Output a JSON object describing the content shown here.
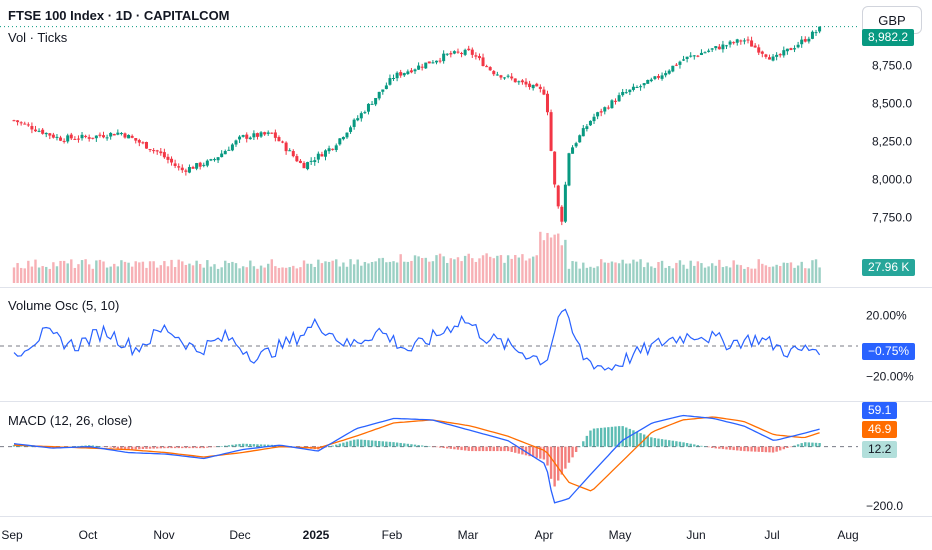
{
  "header": {
    "title": "FTSE 100 Index · 1D · CAPITALCOM",
    "subtitle": "Vol · Ticks",
    "currency_button": "GBP"
  },
  "colors": {
    "up": "#089981",
    "down": "#f23645",
    "volume_up": "#9bd0c4",
    "volume_down": "#f7b0b5",
    "osc_line": "#2962ff",
    "macd_line": "#2962ff",
    "signal_line": "#ff6d00",
    "price_line": "#089981"
  },
  "volume_osc": {
    "label": "Volume Osc (5, 10)",
    "current_label": "−0.75%",
    "axis_labels": [
      "20.00%",
      "−20.00%"
    ]
  },
  "macd": {
    "label": "MACD (12, 26, close)",
    "macd_value_label": "59.1",
    "signal_value_label": "46.9",
    "hist_value_label": "12.2",
    "axis_labels": [
      "−200.0"
    ]
  },
  "volume_badge": "27.96 K",
  "price_badge": "8,982.2",
  "chart_data": {
    "type": "candlestick",
    "title": "FTSE 100 Index · 1D · CAPITALCOM",
    "x_axis_labels": [
      "Sep",
      "Oct",
      "Nov",
      "Dec",
      "2025",
      "Feb",
      "Mar",
      "Apr",
      "May",
      "Jun",
      "Jul",
      "Aug"
    ],
    "y_axis_labels": [
      "8,750.0",
      "8,500.0",
      "8,250.0",
      "8,000.0",
      "7,750.0"
    ],
    "y_ticks": [
      8750,
      8500,
      8250,
      8000,
      7750
    ],
    "ylim": [
      7550,
      9050
    ],
    "price_anchor_points": {
      "x_month_index": [
        0,
        0.6,
        1.0,
        1.4,
        1.9,
        2.2,
        2.6,
        3.0,
        3.4,
        3.8,
        4.2,
        4.6,
        5.0,
        5.4,
        5.7,
        6.0,
        6.3,
        6.6,
        7.0,
        7.1,
        7.2,
        7.3,
        7.6,
        8.0,
        8.4,
        8.8,
        9.2,
        9.6,
        10.0,
        10.4,
        10.6
      ],
      "close": [
        8390,
        8270,
        8280,
        8310,
        8180,
        8060,
        8120,
        8280,
        8300,
        8090,
        8220,
        8450,
        8680,
        8760,
        8820,
        8840,
        8710,
        8650,
        8570,
        8000,
        7700,
        8180,
        8400,
        8560,
        8650,
        8790,
        8860,
        8920,
        8790,
        8920,
        8990
      ]
    },
    "volume_osc": {
      "ylim": [
        -30,
        30
      ],
      "ticks": [
        20,
        -20
      ],
      "anchor_points": {
        "x_month_index": [
          0,
          0.4,
          0.8,
          1.2,
          1.6,
          2.0,
          2.4,
          2.8,
          3.2,
          3.6,
          4.0,
          4.4,
          4.8,
          5.2,
          5.6,
          5.9,
          6.2,
          6.6,
          7.0,
          7.2,
          7.5,
          7.8,
          8.2,
          8.6,
          9.0,
          9.4,
          9.8,
          10.2,
          10.6
        ],
        "values": [
          -5,
          8,
          0,
          10,
          -2,
          12,
          -3,
          6,
          -8,
          2,
          15,
          0,
          10,
          -3,
          8,
          18,
          6,
          -2,
          -10,
          25,
          -8,
          -15,
          -5,
          4,
          8,
          2,
          5,
          -4,
          -1
        ]
      }
    },
    "macd": {
      "ylim": [
        -220,
        130
      ],
      "ticks": [
        -200
      ],
      "macd_anchor": {
        "x_month_index": [
          0,
          0.5,
          1.0,
          1.5,
          2.0,
          2.5,
          3.0,
          3.5,
          4.0,
          4.5,
          5.0,
          5.5,
          6.0,
          6.5,
          7.0,
          7.1,
          7.3,
          7.6,
          8.0,
          8.4,
          8.8,
          9.2,
          9.6,
          10.0,
          10.4,
          10.6
        ],
        "values": [
          10,
          -5,
          0,
          -20,
          -25,
          -40,
          -10,
          5,
          -15,
          60,
          95,
          90,
          55,
          20,
          -60,
          -190,
          -175,
          -90,
          20,
          80,
          105,
          95,
          70,
          20,
          45,
          59.1
        ]
      },
      "signal_anchor": {
        "x_month_index": [
          0,
          0.5,
          1.0,
          1.5,
          2.0,
          2.5,
          3.0,
          3.5,
          4.0,
          4.5,
          5.0,
          5.5,
          6.0,
          6.5,
          7.0,
          7.3,
          7.6,
          8.0,
          8.4,
          8.8,
          9.2,
          9.6,
          10.0,
          10.4,
          10.6
        ],
        "values": [
          5,
          0,
          -5,
          -10,
          -20,
          -35,
          -20,
          0,
          -5,
          35,
          80,
          90,
          70,
          35,
          -15,
          -120,
          -150,
          -50,
          50,
          90,
          100,
          85,
          40,
          30,
          46.9
        ]
      },
      "histogram_last": 12.2
    }
  }
}
